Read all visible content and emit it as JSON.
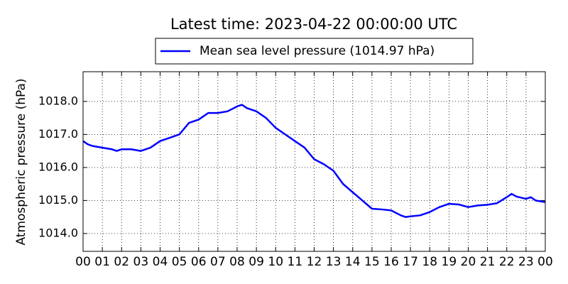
{
  "chart_data": {
    "type": "line",
    "title": "Latest time: 2023-04-22 00:00:00 UTC",
    "y_label": "Atmospheric pressure (hPa)",
    "x": [
      0,
      0.25,
      0.5,
      1,
      1.5,
      1.75,
      2,
      2.5,
      3,
      3.5,
      4,
      4.5,
      5,
      5.5,
      6,
      6.5,
      7,
      7.5,
      8,
      8.25,
      8.5,
      9,
      9.5,
      10,
      10.5,
      11,
      11.5,
      12,
      12.5,
      13,
      13.5,
      14,
      14.5,
      15,
      15.5,
      16,
      16.5,
      16.75,
      17,
      17.5,
      18,
      18.5,
      19,
      19.5,
      20,
      20.5,
      21,
      21.5,
      22,
      22.25,
      22.5,
      23,
      23.25,
      23.5,
      24
    ],
    "series": [
      {
        "name": "Mean sea level pressure (1014.97 hPa)",
        "color": "#0000ff",
        "values": [
          1016.8,
          1016.7,
          1016.65,
          1016.6,
          1016.55,
          1016.5,
          1016.55,
          1016.55,
          1016.5,
          1016.6,
          1016.8,
          1016.9,
          1017.0,
          1017.35,
          1017.45,
          1017.65,
          1017.65,
          1017.7,
          1017.85,
          1017.9,
          1017.8,
          1017.7,
          1017.5,
          1017.2,
          1017.0,
          1016.8,
          1016.6,
          1016.25,
          1016.1,
          1015.9,
          1015.5,
          1015.25,
          1015.0,
          1014.75,
          1014.73,
          1014.7,
          1014.55,
          1014.5,
          1014.52,
          1014.55,
          1014.65,
          1014.8,
          1014.9,
          1014.88,
          1014.8,
          1014.85,
          1014.87,
          1014.92,
          1015.1,
          1015.2,
          1015.12,
          1015.05,
          1015.1,
          1015.0,
          1014.95
        ]
      }
    ],
    "xlim": [
      0,
      24
    ],
    "xticks": [
      {
        "value": 0,
        "label": "00"
      },
      {
        "value": 1,
        "label": "01"
      },
      {
        "value": 2,
        "label": "02"
      },
      {
        "value": 3,
        "label": "03"
      },
      {
        "value": 4,
        "label": "04"
      },
      {
        "value": 5,
        "label": "05"
      },
      {
        "value": 6,
        "label": "06"
      },
      {
        "value": 7,
        "label": "07"
      },
      {
        "value": 8,
        "label": "08"
      },
      {
        "value": 9,
        "label": "09"
      },
      {
        "value": 10,
        "label": "10"
      },
      {
        "value": 11,
        "label": "11"
      },
      {
        "value": 12,
        "label": "12"
      },
      {
        "value": 13,
        "label": "13"
      },
      {
        "value": 14,
        "label": "14"
      },
      {
        "value": 15,
        "label": "15"
      },
      {
        "value": 16,
        "label": "16"
      },
      {
        "value": 17,
        "label": "17"
      },
      {
        "value": 18,
        "label": "18"
      },
      {
        "value": 19,
        "label": "19"
      },
      {
        "value": 20,
        "label": "20"
      },
      {
        "value": 21,
        "label": "21"
      },
      {
        "value": 22,
        "label": "22"
      },
      {
        "value": 23,
        "label": "23"
      },
      {
        "value": 24,
        "label": "00"
      }
    ],
    "ylim": [
      1013.46,
      1018.9
    ],
    "yticks": [
      {
        "value": 1014,
        "label": "1014.0"
      },
      {
        "value": 1015,
        "label": "1015.0"
      },
      {
        "value": 1016,
        "label": "1016.0"
      },
      {
        "value": 1017,
        "label": "1017.0"
      },
      {
        "value": 1018,
        "label": "1018.0"
      }
    ],
    "grid": true,
    "legend": "top"
  }
}
